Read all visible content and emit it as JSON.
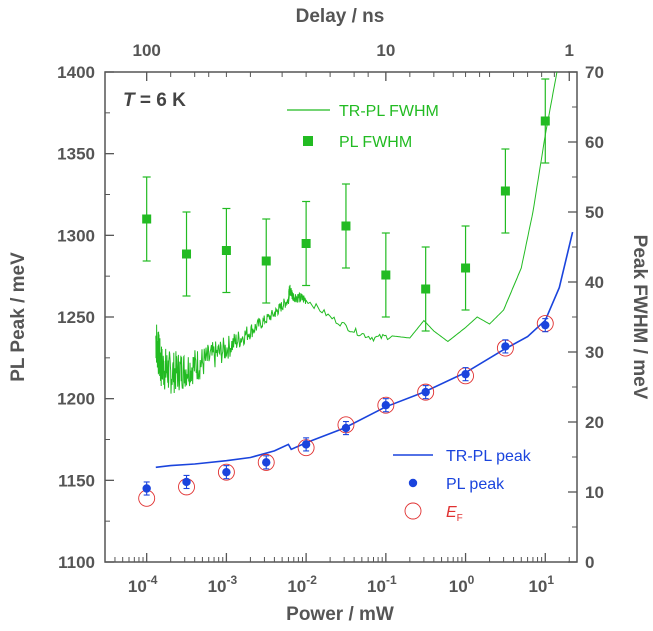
{
  "chart_data": {
    "type": "scatter",
    "annotation": "T = 6 K",
    "x_axis_bottom": {
      "label": "Power / mW",
      "scale": "log",
      "range": [
        3e-05,
        25
      ]
    },
    "x_axis_top": {
      "label": "Delay / ns",
      "ticks": [
        {
          "label": "100",
          "at_power": 0.0001
        },
        {
          "label": "10",
          "at_power": 0.1
        },
        {
          "label": "1",
          "at_power": 20
        }
      ]
    },
    "y_axis_left": {
      "label": "PL Peak / meV",
      "range": [
        1100,
        1400
      ],
      "ticks": [
        "1100",
        "1150",
        "1200",
        "1250",
        "1300",
        "1350",
        "1400"
      ]
    },
    "y_axis_right": {
      "label": "Peak FWHM / meV",
      "range": [
        0,
        70
      ],
      "ticks": [
        "0",
        "10",
        "20",
        "30",
        "40",
        "50",
        "60",
        "70"
      ]
    },
    "legend_top": [
      {
        "name": "TR-PL FWHM",
        "color": "#22bb22",
        "kind": "line"
      },
      {
        "name": "PL FWHM",
        "color": "#22bb22",
        "kind": "square"
      }
    ],
    "legend_bottom": [
      {
        "name": "TR-PL peak",
        "color": "#1a44dd",
        "kind": "line"
      },
      {
        "name": "PL peak",
        "color": "#1a44dd",
        "kind": "circle"
      },
      {
        "name": "E",
        "subscript": "F",
        "color": "#e03030",
        "kind": "open-circle"
      }
    ],
    "series": [
      {
        "name": "PL FWHM",
        "axis": "right",
        "color": "#22bb22",
        "points": [
          {
            "x": 0.0001,
            "y": 49,
            "err": 6
          },
          {
            "x": 0.000316,
            "y": 44,
            "err": 6
          },
          {
            "x": 0.001,
            "y": 44.5,
            "err": 6
          },
          {
            "x": 0.00316,
            "y": 43,
            "err": 6
          },
          {
            "x": 0.01,
            "y": 45.5,
            "err": 6
          },
          {
            "x": 0.0316,
            "y": 48,
            "err": 6
          },
          {
            "x": 0.1,
            "y": 41,
            "err": 6
          },
          {
            "x": 0.316,
            "y": 39,
            "err": 6
          },
          {
            "x": 1,
            "y": 42,
            "err": 6
          },
          {
            "x": 3.16,
            "y": 53,
            "err": 6
          },
          {
            "x": 10,
            "y": 63,
            "err": 6
          }
        ]
      },
      {
        "name": "PL peak",
        "axis": "left",
        "color": "#1a44dd",
        "points": [
          {
            "x": 0.0001,
            "y": 1145,
            "err": 4
          },
          {
            "x": 0.000316,
            "y": 1149,
            "err": 4
          },
          {
            "x": 0.001,
            "y": 1155,
            "err": 4
          },
          {
            "x": 0.00316,
            "y": 1161,
            "err": 4
          },
          {
            "x": 0.01,
            "y": 1172,
            "err": 4
          },
          {
            "x": 0.0316,
            "y": 1182,
            "err": 4
          },
          {
            "x": 0.1,
            "y": 1196,
            "err": 4
          },
          {
            "x": 0.316,
            "y": 1204,
            "err": 4
          },
          {
            "x": 1,
            "y": 1215,
            "err": 4
          },
          {
            "x": 3.16,
            "y": 1232,
            "err": 4
          },
          {
            "x": 10,
            "y": 1245,
            "err": 4
          }
        ]
      },
      {
        "name": "EF",
        "axis": "left",
        "color": "#e03030",
        "points": [
          {
            "x": 0.0001,
            "y": 1139
          },
          {
            "x": 0.000316,
            "y": 1146
          },
          {
            "x": 0.001,
            "y": 1155
          },
          {
            "x": 0.00316,
            "y": 1161
          },
          {
            "x": 0.01,
            "y": 1170
          },
          {
            "x": 0.0316,
            "y": 1184
          },
          {
            "x": 0.1,
            "y": 1196
          },
          {
            "x": 0.316,
            "y": 1204
          },
          {
            "x": 1,
            "y": 1214
          },
          {
            "x": 3.16,
            "y": 1231
          },
          {
            "x": 10,
            "y": 1246
          }
        ]
      },
      {
        "name": "TR-PL peak",
        "axis": "left",
        "color": "#1a44dd",
        "points": [
          {
            "x": 0.00013,
            "y": 1158
          },
          {
            "x": 0.0002,
            "y": 1159
          },
          {
            "x": 0.0004,
            "y": 1160
          },
          {
            "x": 0.001,
            "y": 1162
          },
          {
            "x": 0.002,
            "y": 1164
          },
          {
            "x": 0.004,
            "y": 1168
          },
          {
            "x": 0.006,
            "y": 1172
          },
          {
            "x": 0.0065,
            "y": 1169
          },
          {
            "x": 0.01,
            "y": 1173
          },
          {
            "x": 0.03,
            "y": 1182
          },
          {
            "x": 0.1,
            "y": 1195
          },
          {
            "x": 0.3,
            "y": 1204
          },
          {
            "x": 1,
            "y": 1216
          },
          {
            "x": 3,
            "y": 1230
          },
          {
            "x": 6,
            "y": 1238
          },
          {
            "x": 10,
            "y": 1248
          },
          {
            "x": 15,
            "y": 1268
          },
          {
            "x": 22,
            "y": 1302
          }
        ]
      },
      {
        "name": "TR-PL FWHM",
        "axis": "right",
        "color": "#22bb22",
        "points": [
          {
            "x": 0.00013,
            "y": 32
          },
          {
            "x": 0.00015,
            "y": 28
          },
          {
            "x": 0.0002,
            "y": 27
          },
          {
            "x": 0.0003,
            "y": 27.5
          },
          {
            "x": 0.0005,
            "y": 28.5
          },
          {
            "x": 0.001,
            "y": 30.5
          },
          {
            "x": 0.002,
            "y": 33
          },
          {
            "x": 0.004,
            "y": 35.5
          },
          {
            "x": 0.006,
            "y": 37.5
          },
          {
            "x": 0.0062,
            "y": 39
          },
          {
            "x": 0.0068,
            "y": 38
          },
          {
            "x": 0.01,
            "y": 37.5
          },
          {
            "x": 0.02,
            "y": 35
          },
          {
            "x": 0.04,
            "y": 33
          },
          {
            "x": 0.07,
            "y": 32
          },
          {
            "x": 0.12,
            "y": 32.3
          },
          {
            "x": 0.2,
            "y": 32
          },
          {
            "x": 0.3,
            "y": 34.5
          },
          {
            "x": 0.4,
            "y": 33
          },
          {
            "x": 0.6,
            "y": 31.5
          },
          {
            "x": 1,
            "y": 33.5
          },
          {
            "x": 1.4,
            "y": 35
          },
          {
            "x": 2,
            "y": 34
          },
          {
            "x": 3,
            "y": 36
          },
          {
            "x": 5,
            "y": 42
          },
          {
            "x": 7,
            "y": 50
          },
          {
            "x": 10,
            "y": 61
          },
          {
            "x": 14,
            "y": 70
          }
        ]
      }
    ]
  }
}
